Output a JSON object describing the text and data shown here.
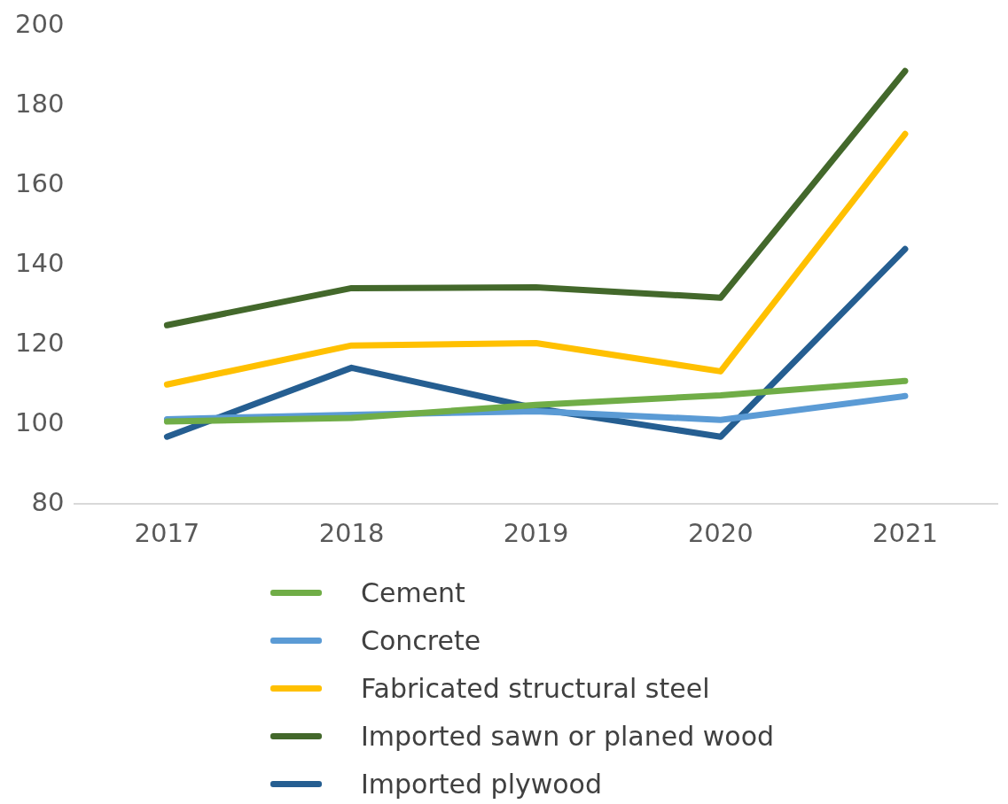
{
  "chart_data": {
    "type": "line",
    "categories": [
      "2017",
      "2018",
      "2019",
      "2020",
      "2021"
    ],
    "series": [
      {
        "name": "Cement",
        "color": "#70ad47",
        "values": [
          100.7,
          101.6,
          104.9,
          107.3,
          110.9
        ]
      },
      {
        "name": "Concrete",
        "color": "#5b9bd5",
        "values": [
          101.3,
          102.4,
          103.3,
          101.1,
          107.1
        ]
      },
      {
        "name": "Fabricated structural steel",
        "color": "#ffc000",
        "values": [
          110,
          119.8,
          120.4,
          113.3,
          172.9
        ]
      },
      {
        "name": "Imported sawn or planed wood",
        "color": "#43682b",
        "values": [
          124.9,
          134.2,
          134.4,
          131.8,
          188.7
        ]
      },
      {
        "name": "Imported plywood",
        "color": "#255e91",
        "values": [
          96.9,
          114.2,
          104,
          96.9,
          144
        ]
      }
    ],
    "ylim": [
      80,
      200
    ],
    "yticks": [
      80,
      100,
      120,
      140,
      160,
      180,
      200
    ],
    "grid": false,
    "legend": "bottom",
    "marker": "none",
    "line_style": "solid"
  }
}
